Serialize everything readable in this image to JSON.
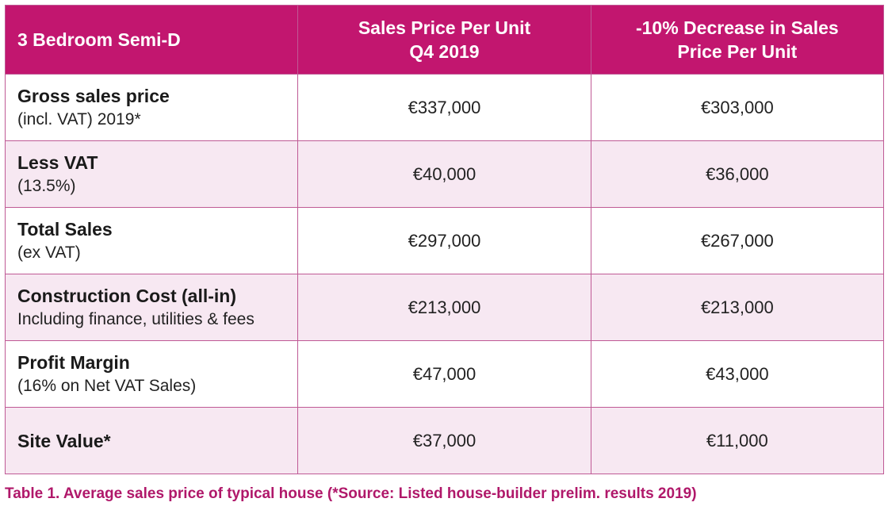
{
  "table": {
    "headers": [
      "3 Bedroom Semi-D",
      "Sales Price Per Unit\nQ4 2019",
      "-10% Decrease in Sales\nPrice Per Unit"
    ],
    "header_lines": {
      "col1_line1": "Sales Price Per Unit",
      "col1_line2": "Q4 2019",
      "col2_line1": "-10% Decrease in Sales",
      "col2_line2": "Price Per Unit"
    },
    "rows": [
      {
        "label": "Gross sales price",
        "sublabel": "(incl. VAT) 2019*",
        "q4_2019": "€337,000",
        "decrease": "€303,000"
      },
      {
        "label": "Less VAT",
        "sublabel": "(13.5%)",
        "q4_2019": "€40,000",
        "decrease": "€36,000"
      },
      {
        "label": "Total Sales",
        "sublabel": "(ex VAT)",
        "q4_2019": "€297,000",
        "decrease": "€267,000"
      },
      {
        "label": "Construction Cost (all-in)",
        "sublabel": "Including finance, utilities & fees",
        "q4_2019": "€213,000",
        "decrease": "€213,000"
      },
      {
        "label": "Profit Margin",
        "sublabel": "(16% on Net VAT Sales)",
        "q4_2019": "€47,000",
        "decrease": "€43,000"
      },
      {
        "label": "Site Value*",
        "sublabel": "",
        "q4_2019": "€37,000",
        "decrease": "€11,000"
      }
    ]
  },
  "caption": "Table 1. Average sales price of typical house (*Source: Listed house-builder prelim. results 2019)",
  "colors": {
    "header_bg": "#c2166f",
    "alt_row_bg": "#f7e8f2",
    "border": "#bf5a95",
    "caption": "#b0186a"
  }
}
